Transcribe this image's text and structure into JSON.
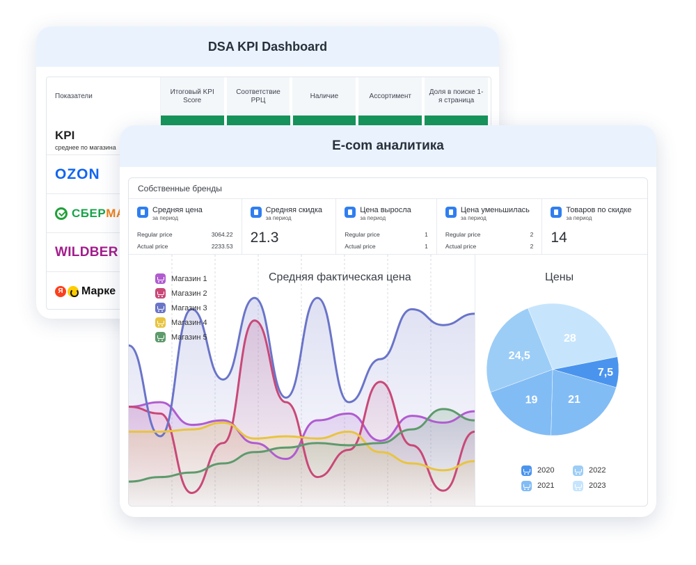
{
  "kpi_window": {
    "title": "DSA KPI Dashboard",
    "first_header": "Показатели",
    "columns": [
      "Итоговый KPI Score",
      "Соответствие РРЦ",
      "Наличие",
      "Ассортимент",
      "Доля в поиске 1-я страница"
    ],
    "kpi_label": "KPI",
    "kpi_sub": "среднее по магазина",
    "stores": {
      "ozon": "OZON",
      "sber_a": "СБЕР ",
      "sber_b": "МА",
      "wb": "WILDBER",
      "ym_letter": "Я",
      "ym": "Марке"
    }
  },
  "ecom_window": {
    "title": "E-com аналитика",
    "panel_title": "Собственные бренды",
    "stats": [
      {
        "label": "Средняя цена",
        "sub": "за период",
        "rows": [
          {
            "name": "Regular price",
            "value": "3064.22"
          },
          {
            "name": "Actual price",
            "value": "2233.53"
          }
        ]
      },
      {
        "label": "Средняя скидка",
        "sub": "за период",
        "big": "21.3"
      },
      {
        "label": "Цена выросла",
        "sub": "за период",
        "rows": [
          {
            "name": "Regular price",
            "value": "1"
          },
          {
            "name": "Actual price",
            "value": "1"
          }
        ]
      },
      {
        "label": "Цена уменьшилась",
        "sub": "за период",
        "rows": [
          {
            "name": "Regular price",
            "value": "2"
          },
          {
            "name": "Actual price",
            "value": "2"
          }
        ]
      },
      {
        "label": "Товаров по скидке",
        "sub": "за период",
        "big": "14"
      }
    ]
  },
  "colors": {
    "store1": "#b05cd0",
    "store2": "#c94878",
    "store3": "#6a74c8",
    "store4": "#e8c440",
    "store5": "#5e9a6c",
    "y2020": "#4a94ee",
    "y2021": "#82bcf5",
    "y2022": "#9ccdf6",
    "y2023": "#c6e5fd",
    "accent": "#2f7ef0"
  },
  "chart_data": [
    {
      "type": "area",
      "title": "Средняя фактическая цена",
      "series": [
        {
          "name": "Магазин 1",
          "color": "#b05cd0",
          "values": [
            44,
            46,
            36,
            38,
            28,
            21,
            38,
            41,
            29,
            40,
            37,
            42
          ]
        },
        {
          "name": "Магазин 2",
          "color": "#c94878",
          "values": [
            44,
            41,
            6,
            28,
            82,
            46,
            13,
            25,
            55,
            27,
            7,
            33
          ]
        },
        {
          "name": "Магазин 3",
          "color": "#6a74c8",
          "values": [
            71,
            31,
            87,
            56,
            92,
            48,
            92,
            46,
            65,
            87,
            80,
            85
          ]
        },
        {
          "name": "Магазин 4",
          "color": "#e8c440",
          "values": [
            33,
            33,
            34,
            37,
            30,
            31,
            30,
            33,
            24,
            19,
            16,
            20
          ]
        },
        {
          "name": "Магазин 5",
          "color": "#5e9a6c",
          "values": [
            11,
            13,
            15,
            19,
            24,
            26,
            28,
            27,
            28,
            34,
            43,
            38
          ]
        }
      ]
    },
    {
      "type": "pie",
      "title": "Цены",
      "slices": [
        {
          "label": "2020",
          "value": 7.5,
          "text": "7,5",
          "color": "#4a94ee"
        },
        {
          "label": "2021",
          "value": 21,
          "text": "21",
          "color": "#82bcf5"
        },
        {
          "label": "2021",
          "value": 19,
          "text": "19",
          "color": "#82bcf5"
        },
        {
          "label": "2022",
          "value": 24.5,
          "text": "24,5",
          "color": "#9ccdf6"
        },
        {
          "label": "2023",
          "value": 28,
          "text": "28",
          "color": "#c6e5fd"
        }
      ],
      "legend": [
        "2020",
        "2022",
        "2021",
        "2023"
      ]
    }
  ]
}
